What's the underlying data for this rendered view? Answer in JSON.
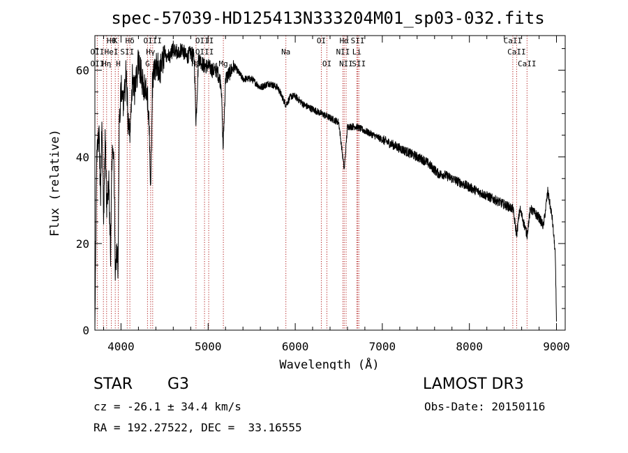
{
  "chart_data": {
    "type": "line",
    "title": "spec-57039-HD125413N333204M01_sp03-032.fits",
    "xlabel": "Wavelength (Å)",
    "ylabel": "Flux (relative)",
    "xlim": [
      3700,
      9100
    ],
    "ylim": [
      0,
      68
    ],
    "x_ticks": [
      4000,
      5000,
      6000,
      7000,
      8000,
      9000
    ],
    "y_ticks": [
      0,
      20,
      40,
      60
    ],
    "grid": false,
    "series": [
      {
        "name": "spectrum",
        "anchors": [
          [
            3700,
            0
          ],
          [
            3710,
            18
          ],
          [
            3720,
            40
          ],
          [
            3735,
            44
          ],
          [
            3750,
            44
          ],
          [
            3765,
            30
          ],
          [
            3780,
            48
          ],
          [
            3800,
            26
          ],
          [
            3820,
            45
          ],
          [
            3835,
            28
          ],
          [
            3860,
            34
          ],
          [
            3880,
            18
          ],
          [
            3900,
            45
          ],
          [
            3920,
            38
          ],
          [
            3935,
            12
          ],
          [
            3950,
            20
          ],
          [
            3965,
            13
          ],
          [
            3980,
            48
          ],
          [
            4000,
            56
          ],
          [
            4030,
            52
          ],
          [
            4060,
            60
          ],
          [
            4080,
            48
          ],
          [
            4101,
            45
          ],
          [
            4130,
            58
          ],
          [
            4160,
            55
          ],
          [
            4200,
            62
          ],
          [
            4250,
            57
          ],
          [
            4300,
            54
          ],
          [
            4320,
            50
          ],
          [
            4340,
            33
          ],
          [
            4360,
            56
          ],
          [
            4400,
            62
          ],
          [
            4450,
            60
          ],
          [
            4500,
            64
          ],
          [
            4550,
            63
          ],
          [
            4600,
            65
          ],
          [
            4650,
            64
          ],
          [
            4700,
            65
          ],
          [
            4750,
            63
          ],
          [
            4800,
            64
          ],
          [
            4840,
            63
          ],
          [
            4861,
            48
          ],
          [
            4890,
            63
          ],
          [
            4950,
            61
          ],
          [
            5000,
            61
          ],
          [
            5050,
            60
          ],
          [
            5100,
            60
          ],
          [
            5150,
            57
          ],
          [
            5172,
            42
          ],
          [
            5200,
            58
          ],
          [
            5300,
            61
          ],
          [
            5400,
            58
          ],
          [
            5500,
            58
          ],
          [
            5600,
            56
          ],
          [
            5700,
            57
          ],
          [
            5800,
            56
          ],
          [
            5893,
            52
          ],
          [
            5950,
            54
          ],
          [
            6000,
            54
          ],
          [
            6100,
            52
          ],
          [
            6200,
            51
          ],
          [
            6300,
            50
          ],
          [
            6400,
            49
          ],
          [
            6500,
            48
          ],
          [
            6563,
            37
          ],
          [
            6600,
            47
          ],
          [
            6700,
            47
          ],
          [
            6800,
            46
          ],
          [
            6900,
            45
          ],
          [
            7000,
            44
          ],
          [
            7100,
            43
          ],
          [
            7200,
            42
          ],
          [
            7300,
            41
          ],
          [
            7400,
            40
          ],
          [
            7500,
            39
          ],
          [
            7600,
            37
          ],
          [
            7650,
            36
          ],
          [
            7700,
            36
          ],
          [
            7800,
            35
          ],
          [
            7900,
            34
          ],
          [
            8000,
            33
          ],
          [
            8100,
            32
          ],
          [
            8200,
            31
          ],
          [
            8300,
            30
          ],
          [
            8400,
            29
          ],
          [
            8500,
            28
          ],
          [
            8542,
            22
          ],
          [
            8580,
            28
          ],
          [
            8662,
            22
          ],
          [
            8700,
            28
          ],
          [
            8800,
            26
          ],
          [
            8850,
            24
          ],
          [
            8900,
            32
          ],
          [
            8950,
            26
          ],
          [
            8985,
            18
          ],
          [
            9000,
            2
          ]
        ]
      }
    ],
    "line_labels": [
      {
        "row": 1,
        "wl": 3889,
        "text": "Hθ"
      },
      {
        "row": 1,
        "wl": 3934,
        "text": "K"
      },
      {
        "row": 1,
        "wl": 4101,
        "text": "Hδ"
      },
      {
        "row": 1,
        "wl": 4363,
        "text": "OIII"
      },
      {
        "row": 1,
        "wl": 4959,
        "text": "OIII"
      },
      {
        "row": 1,
        "wl": 6300,
        "text": "OI"
      },
      {
        "row": 1,
        "wl": 6563,
        "text": "Hα"
      },
      {
        "row": 1,
        "wl": 6717,
        "text": "SII"
      },
      {
        "row": 1,
        "wl": 8498,
        "text": "CaII"
      },
      {
        "row": 2,
        "wl": 3727,
        "text": "OII"
      },
      {
        "row": 2,
        "wl": 3889,
        "text": "HeI"
      },
      {
        "row": 2,
        "wl": 4071,
        "text": "SII"
      },
      {
        "row": 2,
        "wl": 4340,
        "text": "Hγ"
      },
      {
        "row": 2,
        "wl": 4959,
        "text": "OIII"
      },
      {
        "row": 2,
        "wl": 5893,
        "text": "Na"
      },
      {
        "row": 2,
        "wl": 6548,
        "text": "NII"
      },
      {
        "row": 2,
        "wl": 6708,
        "text": "Li"
      },
      {
        "row": 2,
        "wl": 8542,
        "text": "CaII"
      },
      {
        "row": 3,
        "wl": 3727,
        "text": "OII"
      },
      {
        "row": 3,
        "wl": 3835,
        "text": "Hη"
      },
      {
        "row": 3,
        "wl": 3968,
        "text": "H"
      },
      {
        "row": 3,
        "wl": 4304,
        "text": "G"
      },
      {
        "row": 3,
        "wl": 4861,
        "text": "Hβ"
      },
      {
        "row": 3,
        "wl": 5175,
        "text": "Mg"
      },
      {
        "row": 3,
        "wl": 6364,
        "text": "OI"
      },
      {
        "row": 3,
        "wl": 6584,
        "text": "NII"
      },
      {
        "row": 3,
        "wl": 6731,
        "text": "SII"
      },
      {
        "row": 3,
        "wl": 8662,
        "text": "CaII"
      }
    ],
    "marker_lines": [
      3727,
      3798,
      3835,
      3889,
      3934,
      3968,
      4071,
      4101,
      4304,
      4340,
      4363,
      4861,
      4959,
      5007,
      5175,
      5893,
      6300,
      6364,
      6548,
      6563,
      6584,
      6708,
      6717,
      6731,
      8498,
      8542,
      8662
    ],
    "colors": {
      "spectrum": "#000000",
      "marker": "#b01818",
      "axes": "#000000"
    }
  },
  "footer": {
    "object_class": "STAR",
    "subclass": "G3",
    "survey": "LAMOST DR3",
    "redshift": "cz = -26.1 ± 34.4 km/s",
    "obs_date": "Obs-Date: 20150116",
    "coordinates": "RA = 192.27522, DEC =  33.16555"
  }
}
